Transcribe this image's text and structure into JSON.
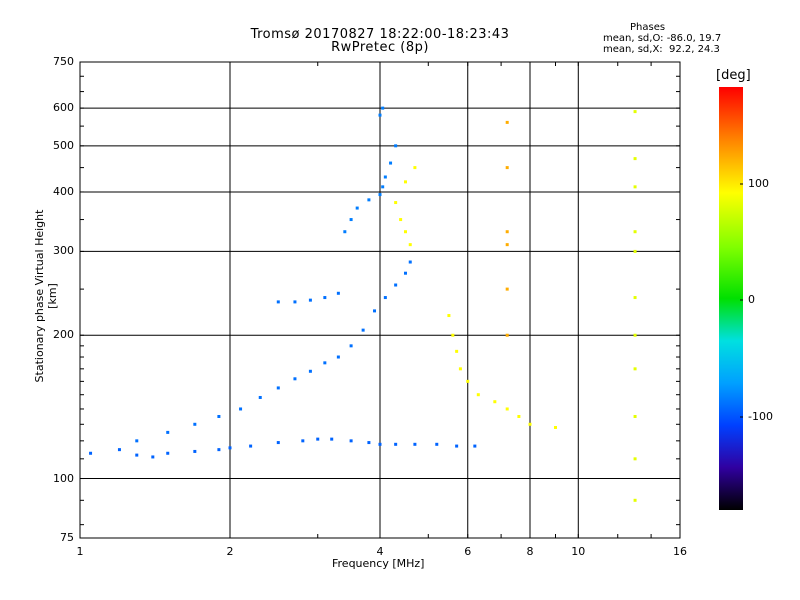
{
  "title_line1": "Tromsø 20170827 18:22:00-18:23:43",
  "title_line2": "RwPretec (8p)",
  "stats": {
    "heading": "Phases",
    "o_mode": "mean, sd,O: -86.0, 19.7",
    "x_mode": "mean, sd,X:  92.2, 24.3"
  },
  "colorbar": {
    "unit": "[deg]",
    "ticks": [
      "100",
      "0",
      "-100"
    ]
  },
  "chart_data": {
    "type": "scatter",
    "title": "Tromsø 20170827 18:22:00-18:23:43 RwPretec (8p)",
    "xlabel": "Frequency [MHz]",
    "ylabel": "Stationary phase Virtual Height [km]",
    "xscale": "log",
    "yscale": "log",
    "xlim": [
      1,
      16
    ],
    "ylim": [
      75,
      750
    ],
    "x_ticks": [
      "1",
      "2",
      "4",
      "6",
      "8",
      "10",
      "16"
    ],
    "y_ticks": [
      "750",
      "600",
      "500",
      "400",
      "300",
      "200",
      "100",
      "75"
    ],
    "grid_x": [
      2,
      4,
      6,
      8,
      10
    ],
    "grid_y": [
      100,
      200,
      300,
      400,
      500,
      600
    ],
    "color_scale": "phase [deg], approx -180 to 180 (rainbow)",
    "grid": true,
    "series": [
      {
        "trace": "O-mode main trace (low heights)",
        "phase": -95,
        "points": [
          [
            1.05,
            113
          ],
          [
            1.2,
            115
          ],
          [
            1.3,
            112
          ],
          [
            1.4,
            111
          ],
          [
            1.5,
            113
          ],
          [
            1.7,
            114
          ],
          [
            1.9,
            115
          ],
          [
            2.0,
            116
          ],
          [
            2.2,
            117
          ],
          [
            2.5,
            119
          ],
          [
            2.8,
            120
          ],
          [
            3.0,
            121
          ],
          [
            3.2,
            121
          ],
          [
            3.5,
            120
          ],
          [
            3.8,
            119
          ],
          [
            4.0,
            118
          ],
          [
            4.3,
            118
          ],
          [
            4.7,
            118
          ],
          [
            5.2,
            118
          ],
          [
            5.7,
            117
          ],
          [
            6.2,
            117
          ]
        ]
      },
      {
        "trace": "spread O echoes (E/F1 region)",
        "phase": -90,
        "points": [
          [
            1.3,
            120
          ],
          [
            1.5,
            125
          ],
          [
            1.7,
            130
          ],
          [
            1.9,
            135
          ],
          [
            2.1,
            140
          ],
          [
            2.3,
            148
          ],
          [
            2.5,
            155
          ],
          [
            2.7,
            162
          ],
          [
            2.9,
            168
          ],
          [
            3.1,
            175
          ],
          [
            3.3,
            180
          ],
          [
            3.5,
            190
          ],
          [
            3.7,
            205
          ],
          [
            3.9,
            225
          ],
          [
            4.1,
            240
          ],
          [
            4.3,
            255
          ],
          [
            4.5,
            270
          ],
          [
            4.6,
            285
          ]
        ]
      },
      {
        "trace": "O-mode F2 high echoes",
        "phase": -85,
        "points": [
          [
            3.4,
            330
          ],
          [
            3.5,
            350
          ],
          [
            3.6,
            370
          ],
          [
            3.8,
            385
          ],
          [
            4.0,
            395
          ],
          [
            4.05,
            410
          ],
          [
            4.1,
            430
          ],
          [
            4.2,
            460
          ],
          [
            4.3,
            500
          ],
          [
            4.0,
            580
          ],
          [
            4.05,
            600
          ]
        ]
      },
      {
        "trace": "O-mode plateau ~235 km",
        "phase": -90,
        "points": [
          [
            2.5,
            235
          ],
          [
            2.7,
            235
          ],
          [
            2.9,
            237
          ],
          [
            3.1,
            240
          ],
          [
            3.3,
            245
          ]
        ]
      },
      {
        "trace": "X-mode echoes",
        "phase": 90,
        "points": [
          [
            4.6,
            310
          ],
          [
            4.5,
            330
          ],
          [
            4.4,
            350
          ],
          [
            4.3,
            380
          ],
          [
            4.5,
            420
          ],
          [
            4.7,
            450
          ],
          [
            5.5,
            220
          ],
          [
            5.6,
            200
          ],
          [
            5.7,
            185
          ],
          [
            5.8,
            170
          ],
          [
            6.0,
            160
          ],
          [
            6.3,
            150
          ],
          [
            6.8,
            145
          ],
          [
            7.2,
            140
          ],
          [
            7.6,
            135
          ],
          [
            8.0,
            130
          ],
          [
            9.0,
            128
          ]
        ]
      },
      {
        "trace": "vertical stripe 7.2 MHz",
        "phase": 120,
        "points": [
          [
            7.2,
            560
          ],
          [
            7.2,
            450
          ],
          [
            7.2,
            330
          ],
          [
            7.2,
            310
          ],
          [
            7.2,
            250
          ],
          [
            7.2,
            200
          ]
        ]
      },
      {
        "trace": "vertical stripe 13 MHz",
        "phase": 80,
        "points": [
          [
            13,
            590
          ],
          [
            13,
            470
          ],
          [
            13,
            410
          ],
          [
            13,
            330
          ],
          [
            13,
            300
          ],
          [
            13,
            240
          ],
          [
            13,
            200
          ],
          [
            13,
            170
          ],
          [
            13,
            135
          ],
          [
            13,
            110
          ],
          [
            13,
            90
          ]
        ]
      }
    ]
  }
}
